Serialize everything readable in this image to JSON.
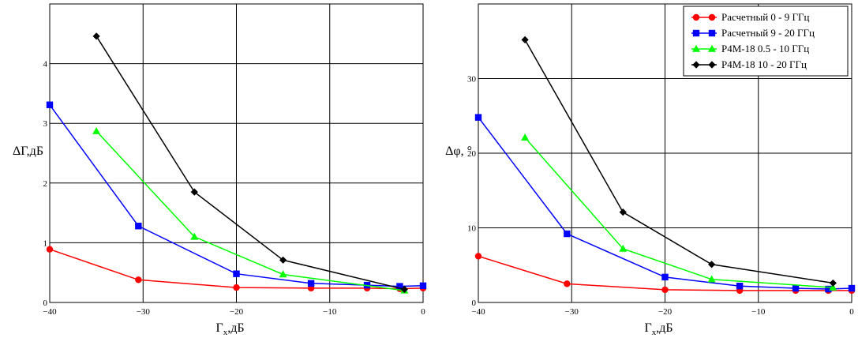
{
  "chart_data": [
    {
      "type": "line",
      "xlabel": "Γx,дБ",
      "ylabel": "ΔГ,дБ",
      "xlim": [
        -40,
        0
      ],
      "ylim": [
        0,
        5
      ],
      "xticks": [
        -40,
        -30,
        -20,
        -10,
        0
      ],
      "yticks": [
        0,
        1,
        2,
        3,
        4
      ],
      "grid": true,
      "series": [
        {
          "name": "Расчетный 0 - 9 ГГц",
          "color": "#ff0000",
          "marker": "circle",
          "x": [
            -40,
            -30.5,
            -20,
            -12,
            -6,
            -2.5,
            0
          ],
          "y": [
            0.89,
            0.38,
            0.25,
            0.24,
            0.24,
            0.23,
            0.24
          ]
        },
        {
          "name": "Расчетный 9 - 20 ГГц",
          "color": "#0000ff",
          "marker": "square",
          "x": [
            -40,
            -30.5,
            -20,
            -12,
            -6,
            -2.5,
            0
          ],
          "y": [
            3.31,
            1.28,
            0.48,
            0.32,
            0.29,
            0.27,
            0.28
          ]
        },
        {
          "name": "P4M-18 0.5 - 10 ГГц",
          "color": "#00ff00",
          "marker": "triangle",
          "x": [
            -35,
            -24.5,
            -15,
            -2
          ],
          "y": [
            2.87,
            1.1,
            0.47,
            0.2
          ]
        },
        {
          "name": "P4M-18 10 - 20 ГГц",
          "color": "#000000",
          "marker": "diamond",
          "x": [
            -35,
            -24.5,
            -15,
            -2
          ],
          "y": [
            4.46,
            1.85,
            0.71,
            0.22
          ]
        }
      ]
    },
    {
      "type": "line",
      "xlabel": "Γx,дБ",
      "ylabel": "Δφ, °",
      "xlim": [
        -40,
        0
      ],
      "ylim": [
        0,
        40
      ],
      "xticks": [
        -40,
        -30,
        -20,
        -10,
        0
      ],
      "yticks": [
        0,
        10,
        20,
        30
      ],
      "grid": true,
      "legend_position": "top-right",
      "series": [
        {
          "name": "Расчетный 0 - 9 ГГц",
          "color": "#ff0000",
          "marker": "circle",
          "x": [
            -40,
            -30.5,
            -20,
            -12,
            -6,
            -2.5,
            0
          ],
          "y": [
            6.2,
            2.5,
            1.7,
            1.6,
            1.6,
            1.6,
            1.6
          ]
        },
        {
          "name": "Расчетный 9 - 20 ГГц",
          "color": "#0000ff",
          "marker": "square",
          "x": [
            -40,
            -30.5,
            -20,
            -12,
            -6,
            -2.5,
            0
          ],
          "y": [
            24.8,
            9.2,
            3.4,
            2.2,
            1.9,
            1.8,
            1.9
          ]
        },
        {
          "name": "P4M-18 0.5 - 10 ГГц",
          "color": "#00ff00",
          "marker": "triangle",
          "x": [
            -35,
            -24.5,
            -15,
            -2
          ],
          "y": [
            22.1,
            7.2,
            3.1,
            2.0
          ]
        },
        {
          "name": "P4M-18 10 - 20 ГГц",
          "color": "#000000",
          "marker": "diamond",
          "x": [
            -35,
            -24.5,
            -15,
            -2
          ],
          "y": [
            35.2,
            12.1,
            5.1,
            2.6
          ]
        }
      ]
    }
  ]
}
